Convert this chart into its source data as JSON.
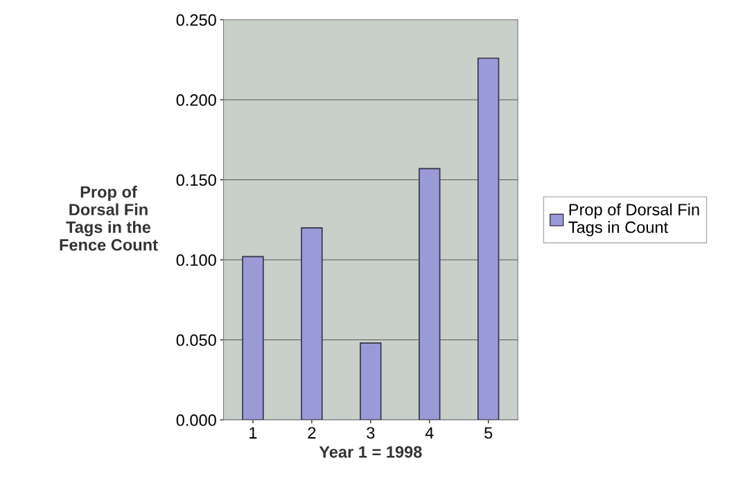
{
  "chart_data": {
    "type": "bar",
    "xlabel": "Year 1 = 1998",
    "ylabel": "Prop of\nDorsal Fin\nTags in the\nFence Count",
    "categories": [
      "1",
      "2",
      "3",
      "4",
      "5"
    ],
    "series": [
      {
        "name": "Prop of Dorsal Fin\nTags in Count",
        "color": "#9a9ad8",
        "values": [
          0.102,
          0.12,
          0.048,
          0.157,
          0.226
        ]
      }
    ],
    "ylim": [
      0,
      0.25
    ],
    "yticks": [
      {
        "value": 0,
        "label": "0.000"
      },
      {
        "value": 0.05,
        "label": "0.050"
      },
      {
        "value": 0.1,
        "label": "0.100"
      },
      {
        "value": 0.15,
        "label": "0.150"
      },
      {
        "value": 0.2,
        "label": "0.200"
      },
      {
        "value": 0.25,
        "label": "0.250"
      }
    ],
    "grid": "y",
    "legend": "right"
  }
}
